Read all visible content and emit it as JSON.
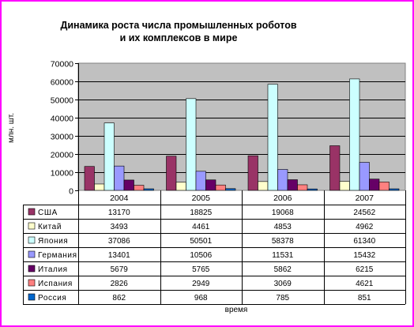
{
  "chart_data": {
    "type": "bar",
    "title": [
      "Динамика роста числа промышленных роботов",
      "и их комплексов в мире"
    ],
    "ylabel": "млн. шт.",
    "xlabel": "время",
    "ylim": [
      0,
      70000
    ],
    "ytick_step": 10000,
    "grid": true,
    "legend": "table",
    "categories": [
      "2004",
      "2005",
      "2006",
      "2007"
    ],
    "series": [
      {
        "name": "США",
        "color": "#993366",
        "values": [
          13170,
          18825,
          19068,
          24562
        ]
      },
      {
        "name": "Китай",
        "color": "#ffffcc",
        "values": [
          3493,
          4461,
          4853,
          4962
        ]
      },
      {
        "name": "Япония",
        "color": "#ccffff",
        "values": [
          37086,
          50501,
          58378,
          61340
        ]
      },
      {
        "name": "Германия",
        "color": "#9999ff",
        "values": [
          13401,
          10506,
          11531,
          15432
        ]
      },
      {
        "name": "Италия",
        "color": "#660066",
        "values": [
          5679,
          5765,
          5862,
          6215
        ]
      },
      {
        "name": "Испания",
        "color": "#ff8080",
        "values": [
          2826,
          2949,
          3069,
          4621
        ]
      },
      {
        "name": "Россия",
        "color": "#0066cc",
        "values": [
          862,
          968,
          785,
          851
        ]
      }
    ]
  },
  "colors": {
    "border": "#ff00ff",
    "plot_bg": "#c0c0c0"
  }
}
